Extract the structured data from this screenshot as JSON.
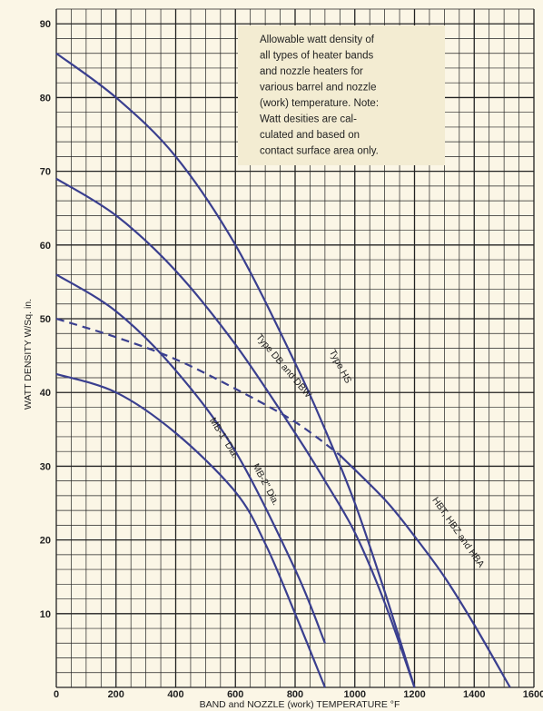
{
  "chart_data": {
    "type": "line",
    "xlabel": "BAND and NOZZLE (work) TEMPERATURE °F",
    "ylabel": "WATT DENSITY W/Sq. in.",
    "xlim": [
      0,
      1600
    ],
    "ylim": [
      0,
      92
    ],
    "x_ticks": [
      "0",
      "200",
      "400",
      "600",
      "800",
      "1000",
      "1200",
      "1400",
      "1600"
    ],
    "y_ticks": [
      "10",
      "20",
      "30",
      "40",
      "50",
      "60",
      "70",
      "80",
      "90"
    ],
    "grid": true,
    "colors": {
      "curve": "#3a3f8f",
      "grid": "#222222",
      "background": "#fbf6e6",
      "note_box": "#f3ecd2"
    },
    "annotation": [
      "Allowable watt density of",
      "all types of heater bands",
      "and nozzle heaters for",
      "various barrel and nozzle",
      "(work) temperature. Note:",
      "Watt desities are cal-",
      "culated and based on",
      "contact surface area only."
    ],
    "series": [
      {
        "name": "Type HS",
        "style": "solid",
        "x": [
          0,
          200,
          400,
          600,
          800,
          900,
          1000,
          1100,
          1200
        ],
        "y": [
          86,
          80,
          72,
          60,
          44,
          35,
          25,
          13,
          0
        ]
      },
      {
        "name": "Type DB and DBW",
        "style": "solid",
        "x": [
          0,
          200,
          400,
          600,
          800,
          900,
          1000,
          1100,
          1200
        ],
        "y": [
          69,
          64,
          56.5,
          46.5,
          34.5,
          28,
          21,
          11.5,
          0
        ]
      },
      {
        "name": "HBT, HBZ and HBA",
        "style": "solid",
        "x": [
          0,
          200,
          400,
          600,
          800,
          950,
          1100,
          1200,
          1300,
          1400,
          1520
        ],
        "y": [
          50,
          47.5,
          44.5,
          40.5,
          36,
          31.5,
          25.5,
          20.5,
          15,
          8.5,
          0
        ]
      },
      {
        "name": "MB-2\" Dia.",
        "style": "solid",
        "x": [
          0,
          200,
          400,
          600,
          800,
          900
        ],
        "y": [
          56,
          51,
          43,
          32,
          16,
          6
        ]
      },
      {
        "name": "MB-1\" Dia.",
        "style": "solid",
        "x": [
          0,
          200,
          400,
          600,
          700,
          800,
          900
        ],
        "y": [
          42.5,
          40,
          34.5,
          26.5,
          19.5,
          10,
          0
        ]
      }
    ],
    "dashed_segment": {
      "x": [
        0,
        200,
        400,
        600,
        800,
        950
      ],
      "y": [
        50,
        47.5,
        44.5,
        40.5,
        36,
        31.5
      ]
    }
  }
}
